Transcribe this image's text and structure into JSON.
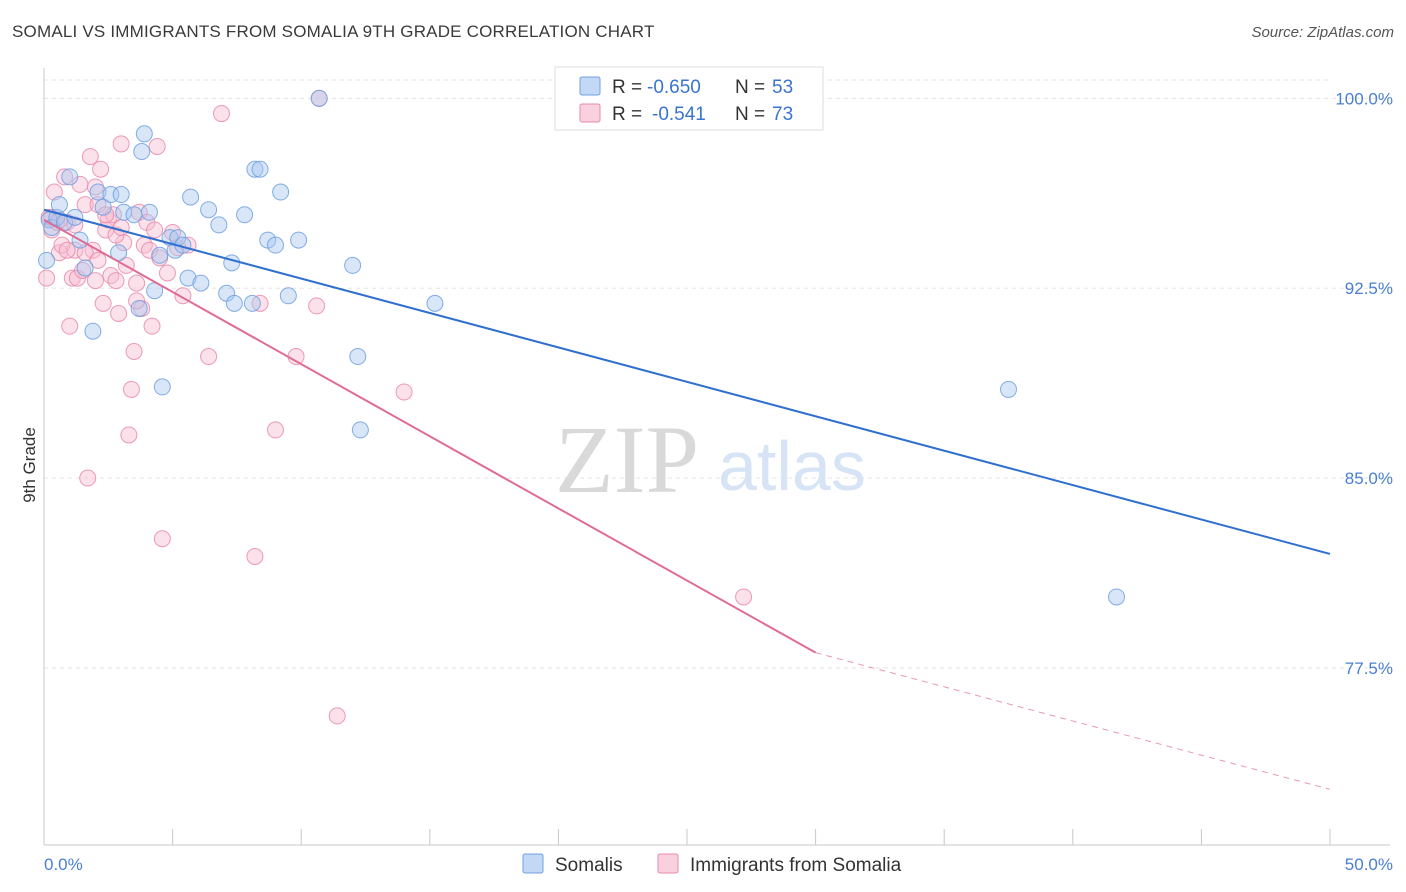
{
  "title": "SOMALI VS IMMIGRANTS FROM SOMALIA 9TH GRADE CORRELATION CHART",
  "source": "Source: ZipAtlas.com",
  "watermark": {
    "zip": "ZIP",
    "atlas": "atlas"
  },
  "colors": {
    "blue_fill": "#a9c8f0",
    "blue_stroke": "#6f9fe0",
    "blue_line": "#2f6fce",
    "pink_fill": "#f6bcd0",
    "pink_stroke": "#e98aab",
    "pink_line": "#e06c95",
    "grid": "#e3e3e3",
    "axis_text": "#4a7fd0"
  },
  "legend": {
    "rows": [
      {
        "r_label": "R =",
        "r_value": "-0.650",
        "n_label": "N =",
        "n_value": "53",
        "color": "blue"
      },
      {
        "r_label": "R =",
        "r_value": "-0.541",
        "n_label": "N =",
        "n_value": "73",
        "color": "pink"
      }
    ]
  },
  "bottom_legend": [
    "Somalis",
    "Immigrants from Somalia"
  ],
  "chart_data": {
    "type": "scatter",
    "xlabel": "",
    "ylabel": "9th Grade",
    "xlim": [
      0,
      50
    ],
    "ylim": [
      70.5,
      101.2
    ],
    "x_tick_labels": [
      "0.0%",
      "50.0%"
    ],
    "y_ticks": [
      77.5,
      85.0,
      92.5,
      100.0
    ],
    "y_tick_labels": [
      "77.5%",
      "85.0%",
      "92.5%",
      "100.0%"
    ],
    "grid": true,
    "legend_position": "top-center",
    "series": [
      {
        "name": "Somalis",
        "color": "blue",
        "trend": {
          "x": [
            0,
            50
          ],
          "y": [
            95.6,
            82.0
          ],
          "dashed_from": null
        },
        "points": [
          [
            0.2,
            95.2
          ],
          [
            0.3,
            94.9
          ],
          [
            0.5,
            95.3
          ],
          [
            0.6,
            95.8
          ],
          [
            0.8,
            95.1
          ],
          [
            1.0,
            96.9
          ],
          [
            1.2,
            95.3
          ],
          [
            1.4,
            94.4
          ],
          [
            1.6,
            93.3
          ],
          [
            1.9,
            90.8
          ],
          [
            2.1,
            96.3
          ],
          [
            2.3,
            95.7
          ],
          [
            2.6,
            96.2
          ],
          [
            2.9,
            93.9
          ],
          [
            3.0,
            96.2
          ],
          [
            3.1,
            95.5
          ],
          [
            3.7,
            91.7
          ],
          [
            3.8,
            97.9
          ],
          [
            3.9,
            98.6
          ],
          [
            4.1,
            95.5
          ],
          [
            4.3,
            92.4
          ],
          [
            4.5,
            93.8
          ],
          [
            4.6,
            88.6
          ],
          [
            4.9,
            94.5
          ],
          [
            5.1,
            94.0
          ],
          [
            5.2,
            94.5
          ],
          [
            5.4,
            94.2
          ],
          [
            5.6,
            92.9
          ],
          [
            5.7,
            96.1
          ],
          [
            6.1,
            92.7
          ],
          [
            6.4,
            95.6
          ],
          [
            6.8,
            95.0
          ],
          [
            7.1,
            92.3
          ],
          [
            7.3,
            93.5
          ],
          [
            7.4,
            91.9
          ],
          [
            7.8,
            95.4
          ],
          [
            8.1,
            91.9
          ],
          [
            8.2,
            97.2
          ],
          [
            8.4,
            97.2
          ],
          [
            8.7,
            94.4
          ],
          [
            9.0,
            94.2
          ],
          [
            9.2,
            96.3
          ],
          [
            9.5,
            92.2
          ],
          [
            9.9,
            94.4
          ],
          [
            10.7,
            100.0
          ],
          [
            12.0,
            93.4
          ],
          [
            12.2,
            89.8
          ],
          [
            12.3,
            86.9
          ],
          [
            15.2,
            91.9
          ],
          [
            37.5,
            88.5
          ],
          [
            41.7,
            80.3
          ],
          [
            0.1,
            93.6
          ],
          [
            3.5,
            95.4
          ]
        ]
      },
      {
        "name": "Immigrants from Somalia",
        "color": "pink",
        "trend": {
          "x": [
            0,
            30
          ],
          "y": [
            95.2,
            78.1
          ],
          "dashed_to": [
            50,
            72.7
          ]
        },
        "points": [
          [
            0.2,
            95.3
          ],
          [
            0.3,
            94.8
          ],
          [
            0.4,
            96.3
          ],
          [
            0.5,
            95.1
          ],
          [
            0.6,
            93.9
          ],
          [
            0.7,
            94.2
          ],
          [
            0.8,
            96.9
          ],
          [
            0.9,
            95.1
          ],
          [
            1.0,
            91.0
          ],
          [
            1.1,
            92.9
          ],
          [
            1.2,
            94.0
          ],
          [
            1.3,
            92.9
          ],
          [
            1.4,
            96.6
          ],
          [
            1.5,
            93.2
          ],
          [
            1.6,
            95.8
          ],
          [
            1.7,
            85.0
          ],
          [
            1.8,
            97.7
          ],
          [
            1.9,
            94.0
          ],
          [
            2.0,
            96.5
          ],
          [
            2.1,
            95.8
          ],
          [
            2.2,
            97.2
          ],
          [
            2.3,
            91.9
          ],
          [
            2.4,
            94.8
          ],
          [
            2.5,
            95.2
          ],
          [
            2.6,
            93.0
          ],
          [
            2.7,
            95.4
          ],
          [
            2.8,
            92.8
          ],
          [
            2.9,
            91.5
          ],
          [
            3.0,
            98.2
          ],
          [
            3.1,
            94.3
          ],
          [
            3.2,
            93.4
          ],
          [
            3.3,
            86.7
          ],
          [
            3.4,
            88.5
          ],
          [
            3.5,
            90.0
          ],
          [
            3.6,
            92.7
          ],
          [
            3.7,
            95.5
          ],
          [
            3.8,
            91.7
          ],
          [
            3.9,
            94.2
          ],
          [
            4.0,
            95.1
          ],
          [
            4.1,
            94.0
          ],
          [
            4.2,
            91.0
          ],
          [
            4.3,
            94.8
          ],
          [
            4.4,
            98.1
          ],
          [
            4.5,
            93.7
          ],
          [
            4.6,
            82.6
          ],
          [
            4.8,
            93.1
          ],
          [
            5.0,
            94.7
          ],
          [
            5.2,
            94.1
          ],
          [
            5.4,
            92.2
          ],
          [
            5.6,
            94.2
          ],
          [
            6.4,
            89.8
          ],
          [
            6.9,
            99.4
          ],
          [
            8.2,
            81.9
          ],
          [
            8.4,
            91.9
          ],
          [
            9.0,
            86.9
          ],
          [
            9.8,
            89.8
          ],
          [
            10.6,
            91.8
          ],
          [
            10.7,
            100.0
          ],
          [
            11.4,
            75.6
          ],
          [
            14.0,
            88.4
          ],
          [
            27.2,
            80.3
          ],
          [
            0.1,
            92.9
          ],
          [
            0.9,
            94.0
          ],
          [
            1.6,
            93.9
          ],
          [
            2.0,
            92.8
          ],
          [
            2.4,
            95.4
          ],
          [
            2.8,
            94.6
          ],
          [
            3.6,
            92.0
          ],
          [
            0.3,
            95.3
          ],
          [
            0.6,
            95.2
          ],
          [
            1.2,
            95.0
          ],
          [
            2.1,
            93.6
          ],
          [
            3.0,
            94.9
          ]
        ]
      }
    ]
  }
}
